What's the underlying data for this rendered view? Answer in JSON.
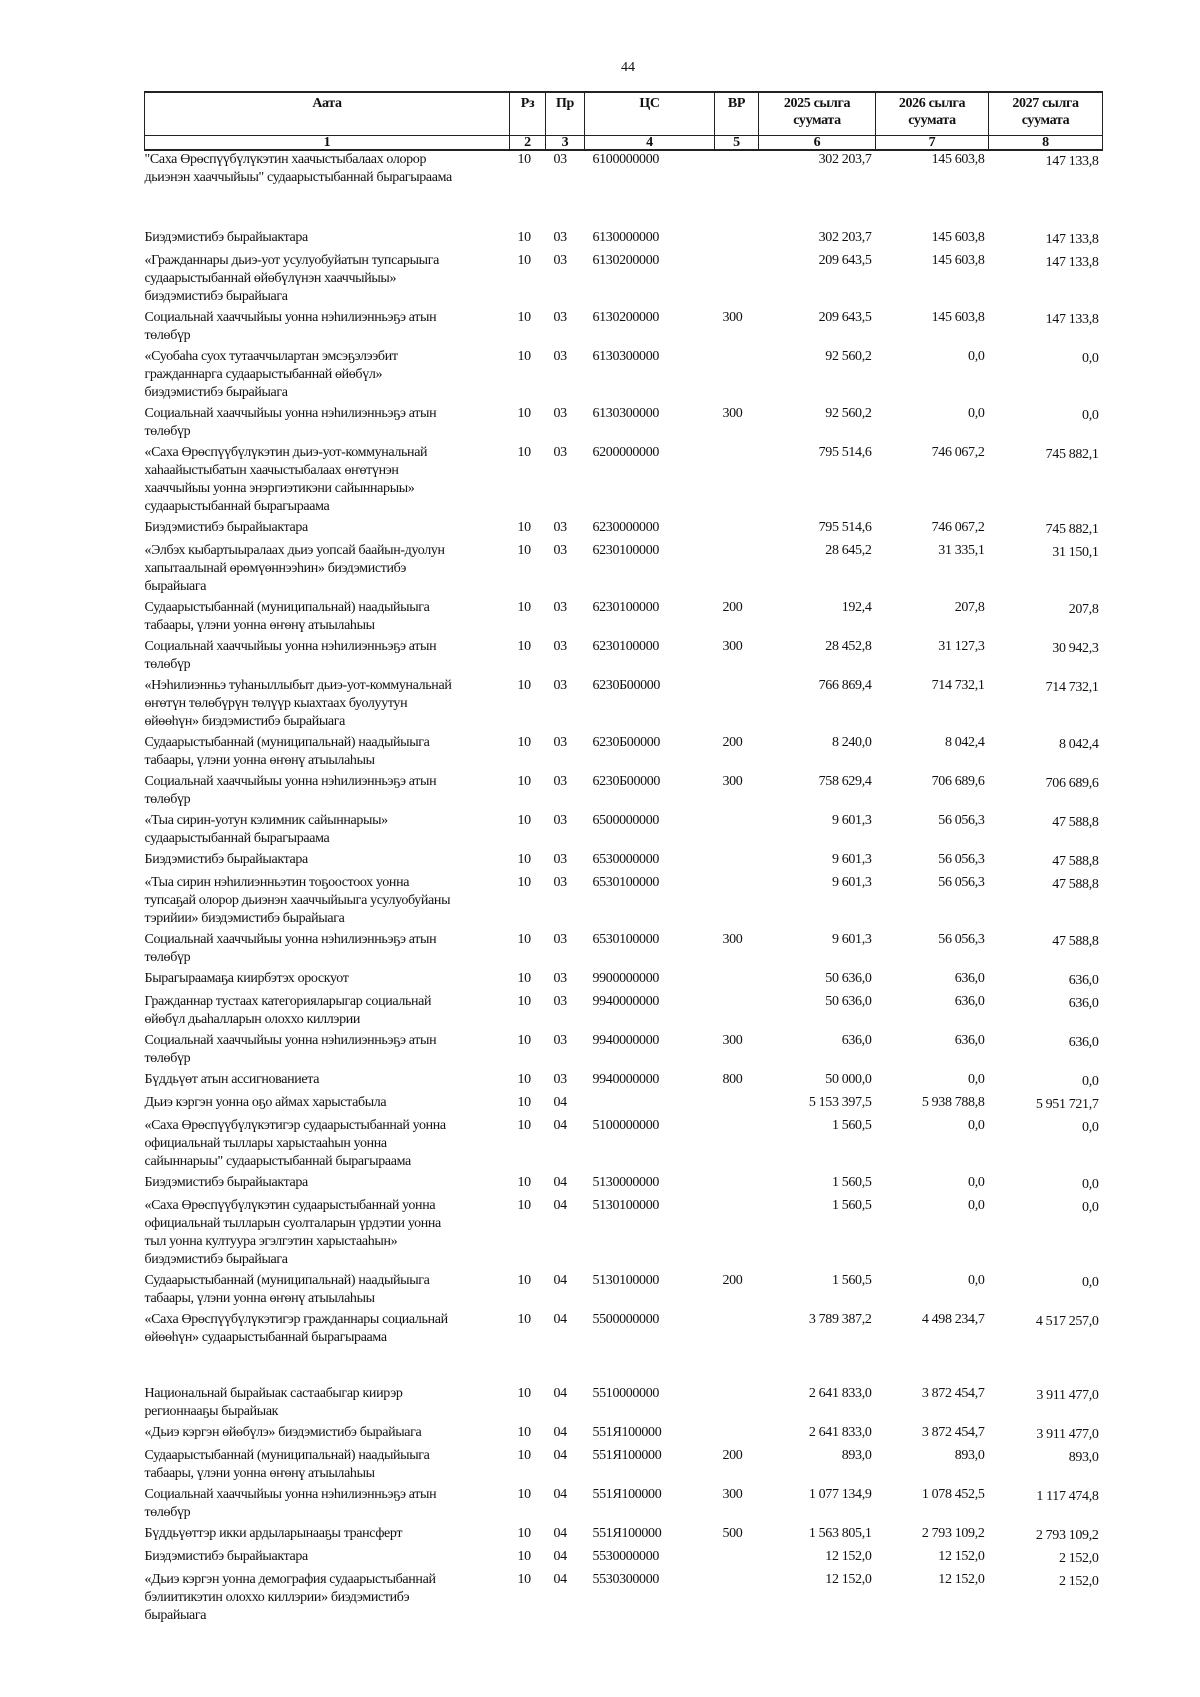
{
  "page_number": "44",
  "table": {
    "headers": [
      "Аата",
      "Рз",
      "Пр",
      "ЦС",
      "ВР",
      "2025 сылга суумата",
      "2026 сылга суумата",
      "2027 сылга суумата"
    ],
    "column_numbers": [
      "1",
      "2",
      "3",
      "4",
      "5",
      "6",
      "7",
      "8"
    ],
    "rows": [
      [
        "\"Саха Өрөспүүбүлүкэтин хаачыстыбалаах олорор\nдьиэнэн хааччыйыы\" судаарыстыбаннай бырагыраама",
        "10",
        "03",
        "6100000000",
        "",
        "302 203,7",
        "145 603,8",
        "147 133,8"
      ],
      [
        "Биэдэмистибэ бырайыактара",
        "10",
        "03",
        "6130000000",
        "",
        "302 203,7",
        "145 603,8",
        "147 133,8"
      ],
      [
        "«Гражданнары дьиэ-уот усулуобуйатын тупсарыыга\nсудаарыстыбаннай өйөбүлүнэн хааччыйыы»\nбиэдэмистибэ бырайыага",
        "10",
        "03",
        "6130200000",
        "",
        "209 643,5",
        "145 603,8",
        "147 133,8"
      ],
      [
        "Социальнай хааччыйыы уонна нэһилиэнньэҕэ атын\nтөлөбүр",
        "10",
        "03",
        "6130200000",
        "300",
        "209 643,5",
        "145 603,8",
        "147 133,8"
      ],
      [
        "«Суобаһа суох тутааччылартан эмсэҕэлээбит\nгражданнарга судаарыстыбаннай өйөбүл»\nбиэдэмистибэ бырайыага",
        "10",
        "03",
        "6130300000",
        "",
        "92 560,2",
        "0,0",
        "0,0"
      ],
      [
        "Социальнай хааччыйыы уонна нэһилиэнньэҕэ атын\nтөлөбүр",
        "10",
        "03",
        "6130300000",
        "300",
        "92 560,2",
        "0,0",
        "0,0"
      ],
      [
        "«Саха Өрөспүүбүлүкэтин дьиэ-уот-коммунальнай\nхаһаайыстыбатын хаачыстыбалаах өҥөтүнэн\nхааччыйыы уонна энэргиэтикэни сайыннарыы»\nсудаарыстыбаннай бырагыраама",
        "10",
        "03",
        "6200000000",
        "",
        "795 514,6",
        "746 067,2",
        "745 882,1"
      ],
      [
        "Биэдэмистибэ бырайыактара",
        "10",
        "03",
        "6230000000",
        "",
        "795 514,6",
        "746 067,2",
        "745 882,1"
      ],
      [
        "«Элбэх кыбартыыралаах дьиэ уопсай баайын-дуолун\nхапытаалынай өрөмүөннээһин» биэдэмистибэ\nбырайыага",
        "10",
        "03",
        "6230100000",
        "",
        "28 645,2",
        "31 335,1",
        "31 150,1"
      ],
      [
        "Судаарыстыбаннай (муниципальнай) наадыйыыга\nтабаары, үлэни уонна өҥөнү атыылаһыы",
        "10",
        "03",
        "6230100000",
        "200",
        "192,4",
        "207,8",
        "207,8"
      ],
      [
        "Социальнай хааччыйыы уонна нэһилиэнньэҕэ атын\nтөлөбүр",
        "10",
        "03",
        "6230100000",
        "300",
        "28 452,8",
        "31 127,3",
        "30 942,3"
      ],
      [
        "«Нэһилиэнньэ туһаныллыбыт дьиэ-уот-коммунальнай\nөҥөтүн төлөбүрүн төлүүр кыахтаах буолуутун\nөйөөһүн» биэдэмистибэ бырайыага",
        "10",
        "03",
        "6230Б00000",
        "",
        "766 869,4",
        "714 732,1",
        "714 732,1"
      ],
      [
        "Судаарыстыбаннай (муниципальнай) наадыйыыга\nтабаары, үлэни уонна өҥөнү атыылаһыы",
        "10",
        "03",
        "6230Б00000",
        "200",
        "8 240,0",
        "8 042,4",
        "8 042,4"
      ],
      [
        "Социальнай хааччыйыы уонна нэһилиэнньэҕэ атын\nтөлөбүр",
        "10",
        "03",
        "6230Б00000",
        "300",
        "758 629,4",
        "706 689,6",
        "706 689,6"
      ],
      [
        "«Тыа сирин-уотун кэлимник сайыннарыы»\nсудаарыстыбаннай бырагыраама",
        "10",
        "03",
        "6500000000",
        "",
        "9 601,3",
        "56 056,3",
        "47 588,8"
      ],
      [
        "Биэдэмистибэ бырайыактара",
        "10",
        "03",
        "6530000000",
        "",
        "9 601,3",
        "56 056,3",
        "47 588,8"
      ],
      [
        "«Тыа сирин нэһилиэнньэтин тоҕоостоох уонна\nтупсаҕай олорор дьиэнэн хааччыйыыга усулуобуйаны\nтэрийии» биэдэмистибэ бырайыага",
        "10",
        "03",
        "6530100000",
        "",
        "9 601,3",
        "56 056,3",
        "47 588,8"
      ],
      [
        "Социальнай хааччыйыы уонна нэһилиэнньэҕэ атын\nтөлөбүр",
        "10",
        "03",
        "6530100000",
        "300",
        "9 601,3",
        "56 056,3",
        "47 588,8"
      ],
      [
        "Бырагыраамаҕа киирбэтэх ороскуот",
        "10",
        "03",
        "9900000000",
        "",
        "50 636,0",
        "636,0",
        "636,0"
      ],
      [
        "Гражданнар тустаах категорияларыгар социальнай\nөйөбүл дьаһалларын олоххо киллэрии",
        "10",
        "03",
        "9940000000",
        "",
        "50 636,0",
        "636,0",
        "636,0"
      ],
      [
        "Социальнай хааччыйыы уонна нэһилиэнньэҕэ атын\nтөлөбүр",
        "10",
        "03",
        "9940000000",
        "300",
        "636,0",
        "636,0",
        "636,0"
      ],
      [
        "Бүддьүөт атын ассигнованиета",
        "10",
        "03",
        "9940000000",
        "800",
        "50 000,0",
        "0,0",
        "0,0"
      ],
      [
        "Дьиэ кэргэн уонна оҕо аймах харыстабыла",
        "10",
        "04",
        "",
        "",
        "5 153 397,5",
        "5 938 788,8",
        "5 951 721,7"
      ],
      [
        "«Саха Өрөспүүбүлүкэтигэр судаарыстыбаннай уонна\nофициальнай тыллары харыстааһын уонна\nсайыннарыы\" судаарыстыбаннай бырагыраама",
        "10",
        "04",
        "5100000000",
        "",
        "1 560,5",
        "0,0",
        "0,0"
      ],
      [
        "Биэдэмистибэ бырайыактара",
        "10",
        "04",
        "5130000000",
        "",
        "1 560,5",
        "0,0",
        "0,0"
      ],
      [
        "«Саха Өрөспүүбүлүкэтин судаарыстыбаннай уонна\nофициальнай тылларын суолталарын үрдэтии уонна\nтыл уонна култуура эгэлгэтин харыстааһын»\nбиэдэмистибэ бырайыага",
        "10",
        "04",
        "5130100000",
        "",
        "1 560,5",
        "0,0",
        "0,0"
      ],
      [
        "Судаарыстыбаннай (муниципальнай) наадыйыыга\nтабаары, үлэни уонна өҥөнү атыылаһыы",
        "10",
        "04",
        "5130100000",
        "200",
        "1 560,5",
        "0,0",
        "0,0"
      ],
      [
        "«Саха Өрөспүүбүлүкэтигэр гражданнары социальнай\nөйөөһүн» судаарыстыбаннай бырагыраама",
        "10",
        "04",
        "5500000000",
        "",
        "3 789 387,2",
        "4 498 234,7",
        "4 517 257,0"
      ],
      [
        "Национальнай бырайыак састаабыгар киирэр\nрегионнааҕы бырайыак",
        "10",
        "04",
        "5510000000",
        "",
        "2 641 833,0",
        "3 872 454,7",
        "3 911 477,0"
      ],
      [
        "«Дьиэ кэргэн өйөбүлэ» биэдэмистибэ бырайыага",
        "10",
        "04",
        "551Я100000",
        "",
        "2 641 833,0",
        "3 872 454,7",
        "3 911 477,0"
      ],
      [
        "Судаарыстыбаннай (муниципальнай) наадыйыыга\nтабаары, үлэни уонна өҥөнү атыылаһыы",
        "10",
        "04",
        "551Я100000",
        "200",
        "893,0",
        "893,0",
        "893,0"
      ],
      [
        "Социальнай хааччыйыы уонна нэһилиэнньэҕэ атын\nтөлөбүр",
        "10",
        "04",
        "551Я100000",
        "300",
        "1 077 134,9",
        "1 078 452,5",
        "1 117 474,8"
      ],
      [
        "Бүддьүөттэр икки ардыларынааҕы трансферт",
        "10",
        "04",
        "551Я100000",
        "500",
        "1 563 805,1",
        "2 793 109,2",
        "2 793 109,2"
      ],
      [
        "Биэдэмистибэ бырайыактара",
        "10",
        "04",
        "5530000000",
        "",
        "12 152,0",
        "12 152,0",
        "2 152,0"
      ],
      [
        "«Дьиэ кэргэн уонна демография судаарыстыбаннай\nбэлиитикэтин олоххо киллэрии» биэдэмистибэ\nбырайыага",
        "10",
        "04",
        "5530300000",
        "",
        "12 152,0",
        "12 152,0",
        "2 152,0"
      ]
    ]
  }
}
